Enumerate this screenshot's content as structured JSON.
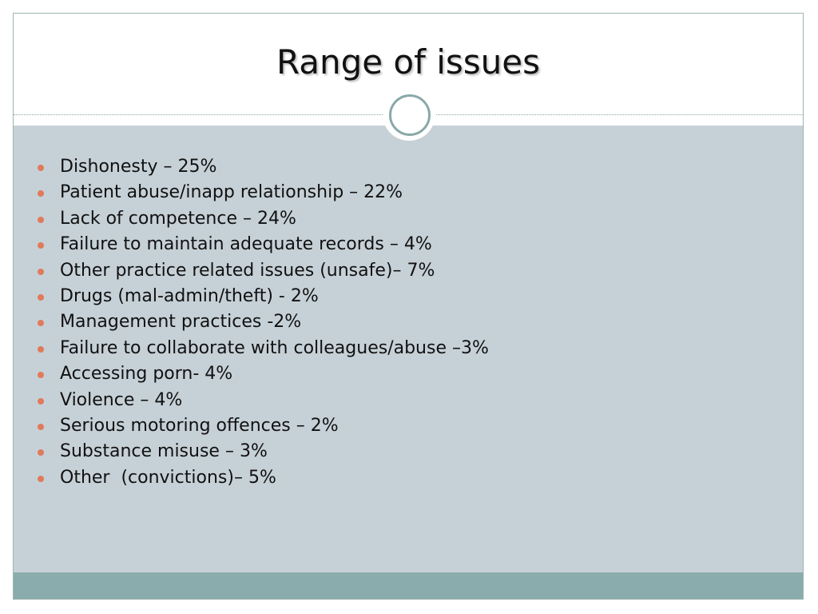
{
  "slide": {
    "title": "Range of issues",
    "bullet_color": "#e07a5a",
    "body_background": "#c6d1d7",
    "footer_color": "#8aacac",
    "items": [
      "Dishonesty – 25%",
      "Patient abuse/inapp relationship – 22%",
      "Lack of competence – 24%",
      "Failure to maintain adequate records – 4%",
      "Other practice related issues (unsafe)– 7%",
      "Drugs (mal-admin/theft) - 2%",
      "Management practices -2%",
      "Failure to collaborate with colleagues/abuse –3%",
      "Accessing porn- 4%",
      "Violence – 4%",
      "Serious motoring offences – 2%",
      "Substance misuse – 3%",
      "Other  (convictions)– 5%"
    ]
  }
}
